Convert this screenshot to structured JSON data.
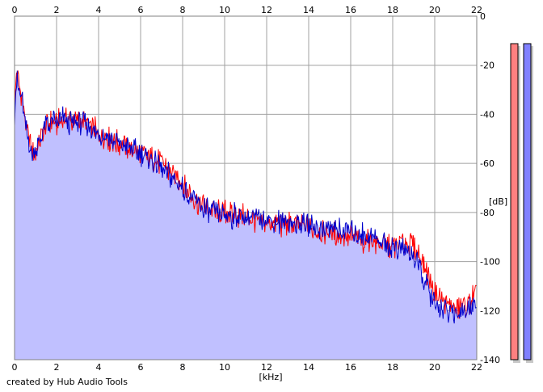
{
  "chart_data": {
    "type": "area",
    "xlabel": "[kHz]",
    "ylabel": "[dB]",
    "xlim": [
      0,
      22
    ],
    "ylim": [
      -140,
      0
    ],
    "x_ticks": [
      0,
      2,
      4,
      6,
      8,
      10,
      12,
      14,
      16,
      18,
      20,
      22
    ],
    "y_ticks": [
      0,
      -20,
      -40,
      -60,
      -80,
      -100,
      -120,
      -140
    ],
    "grid": true,
    "fill_color": "#c0c0ff",
    "series": [
      {
        "color": "#ff0000",
        "x": [
          0.0,
          0.1,
          0.2,
          0.3,
          0.4,
          0.5,
          0.6,
          0.7,
          0.8,
          0.9,
          1.0,
          1.2,
          1.4,
          1.6,
          1.8,
          2.0,
          2.3,
          2.6,
          3.0,
          3.5,
          4.0,
          4.5,
          5.0,
          5.5,
          6.0,
          6.5,
          7.0,
          7.5,
          8.0,
          8.5,
          9.0,
          9.5,
          10.0,
          11.0,
          12.0,
          13.0,
          14.0,
          15.0,
          16.0,
          17.0,
          18.0,
          18.5,
          19.0,
          19.3,
          19.5,
          19.8,
          20.0,
          20.5,
          21.0,
          21.5,
          22.0
        ],
        "y": [
          -38,
          -22,
          -28,
          -30,
          -35,
          -42,
          -48,
          -50,
          -55,
          -57,
          -56,
          -50,
          -46,
          -44,
          -43,
          -44,
          -42,
          -42,
          -43,
          -44,
          -48,
          -50,
          -52,
          -54,
          -56,
          -58,
          -60,
          -64,
          -68,
          -74,
          -78,
          -80,
          -80,
          -82,
          -84,
          -85,
          -86,
          -88,
          -90,
          -92,
          -94,
          -92,
          -94,
          -98,
          -101,
          -108,
          -113,
          -117,
          -119,
          -118,
          -113
        ]
      },
      {
        "color": "#0000cc",
        "x": [
          0.0,
          0.1,
          0.2,
          0.3,
          0.4,
          0.5,
          0.6,
          0.7,
          0.8,
          0.9,
          1.0,
          1.2,
          1.4,
          1.6,
          1.8,
          2.0,
          2.3,
          2.6,
          3.0,
          3.5,
          4.0,
          4.5,
          5.0,
          5.5,
          6.0,
          6.5,
          7.0,
          7.5,
          8.0,
          8.5,
          9.0,
          9.5,
          10.0,
          11.0,
          12.0,
          13.0,
          14.0,
          15.0,
          16.0,
          17.0,
          18.0,
          18.5,
          19.0,
          19.3,
          19.5,
          19.8,
          20.0,
          20.5,
          21.0,
          21.5,
          22.0
        ],
        "y": [
          -40,
          -25,
          -30,
          -32,
          -36,
          -44,
          -49,
          -52,
          -56,
          -56,
          -55,
          -50,
          -46,
          -44,
          -43,
          -44,
          -42,
          -43,
          -43,
          -45,
          -48,
          -50,
          -52,
          -54,
          -56,
          -58,
          -62,
          -66,
          -70,
          -75,
          -78,
          -80,
          -81,
          -82,
          -83,
          -84,
          -85,
          -87,
          -88,
          -90,
          -94,
          -95,
          -97,
          -104,
          -108,
          -113,
          -118,
          -120,
          -121,
          -120,
          -116
        ]
      }
    ]
  },
  "scale": {
    "bars": [
      {
        "color": "#ff8080"
      },
      {
        "color": "#8080ff"
      }
    ]
  },
  "credit": "created by Hub Audio Tools"
}
